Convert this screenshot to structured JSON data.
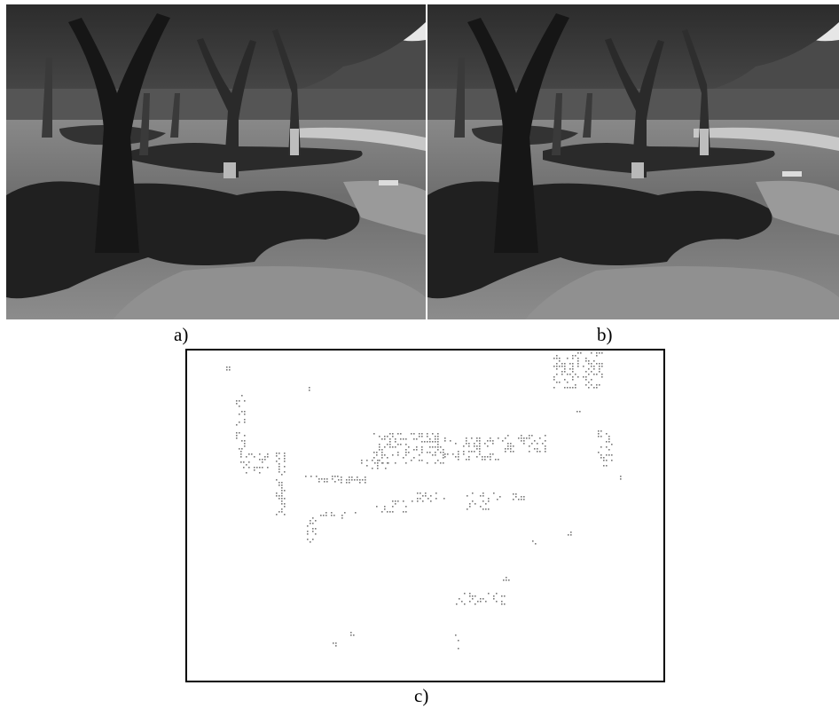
{
  "captions": {
    "a": "a)",
    "b": "b)",
    "c": "c)"
  },
  "colors": {
    "background": "#ffffff",
    "frame": "#000000",
    "dots": "#7a7a7a",
    "grass": "#5e5e5e",
    "shadow": "#1a1a1a",
    "sky": "#e8e8e8"
  }
}
